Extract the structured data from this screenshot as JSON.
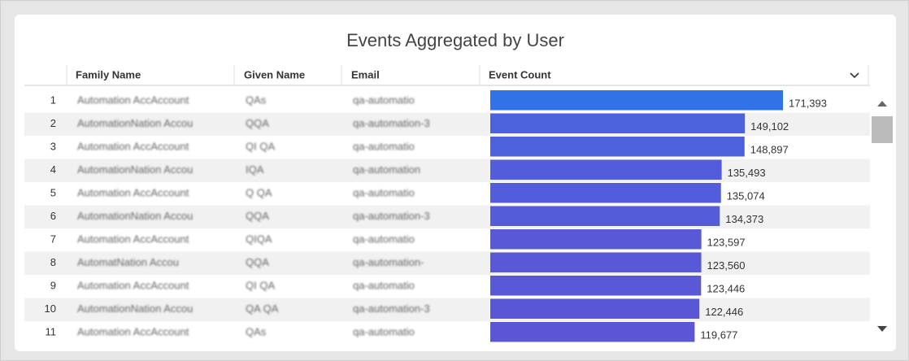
{
  "header": {
    "title": "Events Aggregated by User"
  },
  "table": {
    "columns": [
      "Family Name",
      "Given Name",
      "Email",
      "Event Count"
    ],
    "rows": [
      {
        "index": 1,
        "family_name": "Automation AccAccount",
        "given_name": "QAs",
        "email": "qa-automatio",
        "event_count": 171393,
        "event_count_label": "171,393",
        "color": "#2f73e6"
      },
      {
        "index": 2,
        "family_name": "AutomationNation Accou",
        "given_name": "QQA",
        "email": "qa-automation-3",
        "event_count": 149102,
        "event_count_label": "149,102",
        "color": "#4c62dd"
      },
      {
        "index": 3,
        "family_name": "Automation AccAccount",
        "given_name": "QI QA",
        "email": "qa-automatio",
        "event_count": 148897,
        "event_count_label": "148,897",
        "color": "#4d61dd"
      },
      {
        "index": 4,
        "family_name": "AutomationNation Accou",
        "given_name": "IQA",
        "email": "qa-automation",
        "event_count": 135493,
        "event_count_label": "135,493",
        "color": "#535cda"
      },
      {
        "index": 5,
        "family_name": "Automation AccAccount",
        "given_name": "Q QA",
        "email": "qa-automatio",
        "event_count": 135074,
        "event_count_label": "135,074",
        "color": "#535cda"
      },
      {
        "index": 6,
        "family_name": "AutomationNation Accou",
        "given_name": "QQA",
        "email": "qa-automation-3",
        "event_count": 134373,
        "event_count_label": "134,373",
        "color": "#545cda"
      },
      {
        "index": 7,
        "family_name": "Automation AccAccount",
        "given_name": "QIQA",
        "email": "qa-automatio",
        "event_count": 123597,
        "event_count_label": "123,597",
        "color": "#5958d7"
      },
      {
        "index": 8,
        "family_name": "AutomatNation Accou",
        "given_name": "QQA",
        "email": "qa-automation-",
        "event_count": 123560,
        "event_count_label": "123,560",
        "color": "#5958d7"
      },
      {
        "index": 9,
        "family_name": "Automation AccAccount",
        "given_name": "QI QA",
        "email": "qa-automatio",
        "event_count": 123446,
        "event_count_label": "123,446",
        "color": "#5958d7"
      },
      {
        "index": 10,
        "family_name": "AutomationNation Accou",
        "given_name": "QA QA",
        "email": "qa-automation-3",
        "event_count": 122446,
        "event_count_label": "122,446",
        "color": "#5a57d7"
      },
      {
        "index": 11,
        "family_name": "Automation AccAccount",
        "given_name": "QAs",
        "email": "qa-automatio",
        "event_count": 119677,
        "event_count_label": "119,677",
        "color": "#5b56d6"
      }
    ]
  }
}
